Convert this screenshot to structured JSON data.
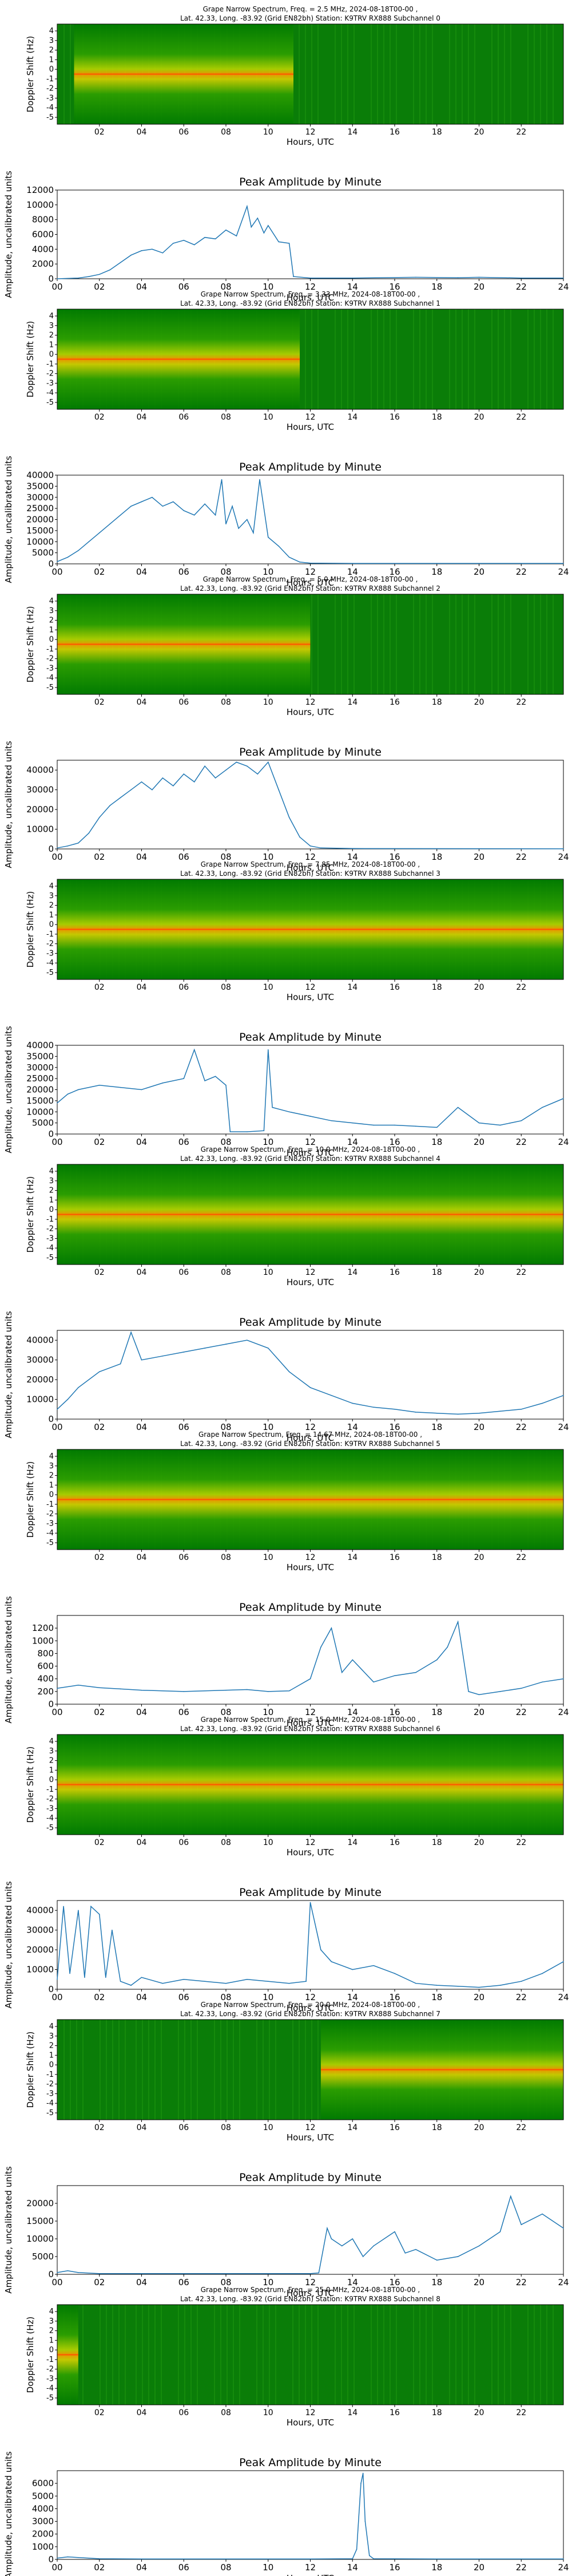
{
  "x_axis": {
    "label": "Hours, UTC",
    "min": 0,
    "max": 24
  },
  "spec_ylabel": "Doppler Shift (Hz)",
  "spec_yticks": [
    "4",
    "3",
    "2",
    "1",
    "0",
    "-1",
    "-2",
    "-3",
    "-4",
    "-5"
  ],
  "spec_xticks": [
    "02",
    "04",
    "06",
    "08",
    "10",
    "12",
    "14",
    "16",
    "18",
    "20",
    "22"
  ],
  "amp_title": "Peak Amplitude by Minute",
  "amp_ylabel": "Amplitude, uncalibrated units",
  "amp_xticks": [
    "00",
    "02",
    "04",
    "06",
    "08",
    "10",
    "12",
    "14",
    "16",
    "18",
    "20",
    "22",
    "24"
  ],
  "series_color": "#1f77b4",
  "chart_data": [
    {
      "type": "heatmap",
      "title_line1": "Grape Narrow Spectrum, Freq. = 2.5 MHz, 2024-08-18T00-00 ,",
      "title_line2": "Lat. 42.33, Long. -83.92 (Grid EN82bh) Station: K9TRV RX888 Subchannel 0",
      "carrier": [
        0.8,
        11.2
      ],
      "amplitude": {
        "type": "line",
        "ylim": [
          0,
          12000
        ],
        "yticks": [
          0,
          2000,
          4000,
          6000,
          8000,
          10000,
          12000
        ],
        "x": [
          0,
          1,
          1.5,
          2,
          2.5,
          3,
          3.5,
          4,
          4.5,
          5,
          5.5,
          6,
          6.5,
          7,
          7.5,
          8,
          8.5,
          9,
          9.2,
          9.5,
          9.8,
          10,
          10.5,
          11,
          11.2,
          12,
          14,
          17,
          19,
          20,
          22,
          24
        ],
        "y": [
          0,
          100,
          300,
          600,
          1200,
          2200,
          3200,
          3800,
          4000,
          3500,
          4800,
          5200,
          4600,
          5600,
          5400,
          6600,
          5800,
          9800,
          7000,
          8200,
          6200,
          7200,
          5000,
          4800,
          300,
          100,
          100,
          200,
          150,
          200,
          100,
          100
        ]
      }
    },
    {
      "type": "heatmap",
      "title_line1": "Grape Narrow Spectrum, Freq. = 3.33 MHz, 2024-08-18T00-00 ,",
      "title_line2": "Lat. 42.33, Long. -83.92 (Grid EN82bh) Station: K9TRV RX888 Subchannel 1",
      "carrier": [
        0,
        11.5
      ],
      "amplitude": {
        "type": "line",
        "ylim": [
          0,
          40000
        ],
        "yticks": [
          0,
          5000,
          10000,
          15000,
          20000,
          25000,
          30000,
          35000,
          40000
        ],
        "x": [
          0,
          0.5,
          1,
          1.5,
          2,
          2.5,
          3,
          3.5,
          4,
          4.5,
          5,
          5.5,
          6,
          6.5,
          7,
          7.5,
          7.8,
          8,
          8.3,
          8.6,
          9,
          9.3,
          9.6,
          10,
          10.5,
          11,
          11.5,
          12,
          14,
          18,
          24
        ],
        "y": [
          1000,
          3000,
          6000,
          10000,
          14000,
          18000,
          22000,
          26000,
          28000,
          30000,
          26000,
          28000,
          24000,
          22000,
          27000,
          22000,
          38000,
          18000,
          26000,
          16000,
          20000,
          14000,
          38000,
          12000,
          8000,
          3000,
          800,
          300,
          200,
          200,
          200
        ]
      }
    },
    {
      "type": "heatmap",
      "title_line1": "Grape Narrow Spectrum, Freq. = 5.0 MHz, 2024-08-18T00-00 ,",
      "title_line2": "Lat. 42.33, Long. -83.92 (Grid EN82bh) Station: K9TRV RX888 Subchannel 2",
      "carrier": [
        0,
        12
      ],
      "amplitude": {
        "type": "line",
        "ylim": [
          0,
          45000
        ],
        "yticks": [
          0,
          10000,
          20000,
          30000,
          40000
        ],
        "x": [
          0,
          0.5,
          1,
          1.5,
          2,
          2.5,
          3,
          3.5,
          4,
          4.5,
          5,
          5.5,
          6,
          6.5,
          7,
          7.5,
          8,
          8.5,
          9,
          9.5,
          10,
          10.5,
          11,
          11.5,
          12,
          12.5,
          14,
          24
        ],
        "y": [
          500,
          1500,
          3000,
          8000,
          16000,
          22000,
          26000,
          30000,
          34000,
          30000,
          36000,
          32000,
          38000,
          34000,
          42000,
          36000,
          40000,
          44000,
          42000,
          38000,
          44000,
          30000,
          16000,
          6000,
          1500,
          500,
          200,
          100
        ]
      }
    },
    {
      "type": "heatmap",
      "title_line1": "Grape Narrow Spectrum, Freq. = 7.85 MHz, 2024-08-18T00-00 ,",
      "title_line2": "Lat. 42.33, Long. -83.92 (Grid EN82bh) Station: K9TRV RX888 Subchannel 3",
      "carrier": [
        0,
        24
      ],
      "amplitude": {
        "type": "line",
        "ylim": [
          0,
          40000
        ],
        "yticks": [
          0,
          5000,
          10000,
          15000,
          20000,
          25000,
          30000,
          35000,
          40000
        ],
        "x": [
          0,
          0.5,
          1,
          2,
          3,
          4,
          5,
          6,
          6.5,
          7,
          7.5,
          8,
          8.2,
          9,
          9.8,
          10,
          10.2,
          11,
          12,
          13,
          14,
          15,
          16,
          17,
          18,
          19,
          20,
          21,
          22,
          23,
          24
        ],
        "y": [
          14000,
          18000,
          20000,
          22000,
          21000,
          20000,
          23000,
          25000,
          38000,
          24000,
          26000,
          22000,
          1000,
          1000,
          1500,
          38000,
          12000,
          10000,
          8000,
          6000,
          5000,
          4000,
          4000,
          3500,
          3000,
          12000,
          5000,
          4000,
          6000,
          12000,
          16000
        ]
      }
    },
    {
      "type": "heatmap",
      "title_line1": "Grape Narrow Spectrum, Freq. = 10.0 MHz, 2024-08-18T00-00 ,",
      "title_line2": "Lat. 42.33, Long. -83.92 (Grid EN82bh) Station: K9TRV RX888 Subchannel 4",
      "carrier": [
        0,
        24
      ],
      "amplitude": {
        "type": "line",
        "ylim": [
          0,
          45000
        ],
        "yticks": [
          0,
          10000,
          20000,
          30000,
          40000
        ],
        "x": [
          0,
          0.5,
          1,
          2,
          3,
          3.5,
          4,
          5,
          6,
          7,
          8,
          9,
          10,
          11,
          12,
          13,
          14,
          15,
          16,
          17,
          18,
          19,
          20,
          21,
          22,
          23,
          24
        ],
        "y": [
          5000,
          10000,
          16000,
          24000,
          28000,
          44000,
          30000,
          32000,
          34000,
          36000,
          38000,
          40000,
          36000,
          24000,
          16000,
          12000,
          8000,
          6000,
          5000,
          3500,
          3000,
          2500,
          3000,
          4000,
          5000,
          8000,
          12000
        ]
      }
    },
    {
      "type": "heatmap",
      "title_line1": "Grape Narrow Spectrum, Freq. = 14.67 MHz, 2024-08-18T00-00 ,",
      "title_line2": "Lat. 42.33, Long. -83.92 (Grid EN82bh) Station: K9TRV RX888 Subchannel 5",
      "carrier": [
        0,
        24
      ],
      "amplitude": {
        "type": "line",
        "ylim": [
          0,
          1400
        ],
        "yticks": [
          0,
          200,
          400,
          600,
          800,
          1000,
          1200
        ],
        "x": [
          0,
          1,
          2,
          3,
          4,
          5,
          6,
          7,
          8,
          9,
          10,
          11,
          12,
          12.5,
          13,
          13.5,
          14,
          15,
          16,
          17,
          18,
          18.5,
          19,
          19.5,
          20,
          21,
          22,
          23,
          24
        ],
        "y": [
          250,
          300,
          260,
          240,
          220,
          210,
          200,
          210,
          220,
          230,
          200,
          210,
          400,
          900,
          1200,
          500,
          700,
          350,
          450,
          500,
          700,
          900,
          1300,
          200,
          150,
          200,
          250,
          350,
          400
        ]
      }
    },
    {
      "type": "heatmap",
      "title_line1": "Grape Narrow Spectrum, Freq. = 15.0 MHz, 2024-08-18T00-00 ,",
      "title_line2": "Lat. 42.33, Long. -83.92 (Grid EN82bh) Station: K9TRV RX888 Subchannel 6",
      "carrier": [
        0,
        24
      ],
      "amplitude": {
        "type": "line",
        "ylim": [
          0,
          45000
        ],
        "yticks": [
          0,
          10000,
          20000,
          30000,
          40000
        ],
        "x": [
          0,
          0.3,
          0.6,
          1,
          1.3,
          1.6,
          2,
          2.3,
          2.6,
          3,
          3.5,
          4,
          5,
          6,
          7,
          8,
          9,
          10,
          11,
          11.8,
          12,
          12.5,
          13,
          14,
          15,
          16,
          17,
          18,
          19,
          20,
          21,
          22,
          23,
          24
        ],
        "y": [
          5000,
          42000,
          8000,
          40000,
          6000,
          42000,
          38000,
          6000,
          30000,
          4000,
          2000,
          6000,
          3000,
          5000,
          4000,
          3000,
          5000,
          4000,
          3000,
          4000,
          44000,
          20000,
          14000,
          10000,
          12000,
          8000,
          3000,
          2000,
          1500,
          1000,
          2000,
          4000,
          8000,
          14000
        ]
      }
    },
    {
      "type": "heatmap",
      "title_line1": "Grape Narrow Spectrum, Freq. = 20.0 MHz, 2024-08-18T00-00 ,",
      "title_line2": "Lat. 42.33, Long. -83.92 (Grid EN82bh) Station: K9TRV RX888 Subchannel 7",
      "carrier": [
        12.5,
        24
      ],
      "amplitude": {
        "type": "line",
        "ylim": [
          0,
          25000
        ],
        "yticks": [
          0,
          5000,
          10000,
          15000,
          20000
        ],
        "x": [
          0,
          0.5,
          1,
          2,
          4,
          6,
          8,
          10,
          11,
          12,
          12.4,
          12.8,
          13,
          13.5,
          14,
          14.5,
          15,
          16,
          16.5,
          17,
          18,
          19,
          20,
          21,
          21.5,
          22,
          23,
          24
        ],
        "y": [
          500,
          1000,
          500,
          200,
          200,
          200,
          200,
          200,
          200,
          200,
          400,
          13000,
          10000,
          8000,
          10000,
          5000,
          8000,
          12000,
          6000,
          7000,
          4000,
          5000,
          8000,
          12000,
          22000,
          14000,
          17000,
          13000
        ]
      }
    },
    {
      "type": "heatmap",
      "title_line1": "Grape Narrow Spectrum, Freq. = 25.0 MHz, 2024-08-18T00-00 ,",
      "title_line2": "Lat. 42.33, Long. -83.92 (Grid EN82bh) Station: K9TRV RX888 Subchannel 8",
      "carrier": [
        0,
        1
      ],
      "amplitude": {
        "type": "line",
        "ylim": [
          0,
          7000
        ],
        "yticks": [
          0,
          1000,
          2000,
          3000,
          4000,
          5000,
          6000
        ],
        "x": [
          0,
          0.5,
          1,
          1.5,
          2,
          4,
          8,
          12,
          14,
          14.2,
          14.4,
          14.5,
          14.6,
          14.8,
          15,
          18,
          22,
          24
        ],
        "y": [
          100,
          200,
          150,
          100,
          50,
          30,
          30,
          30,
          50,
          800,
          6000,
          6800,
          3000,
          300,
          50,
          30,
          30,
          30
        ]
      }
    }
  ]
}
